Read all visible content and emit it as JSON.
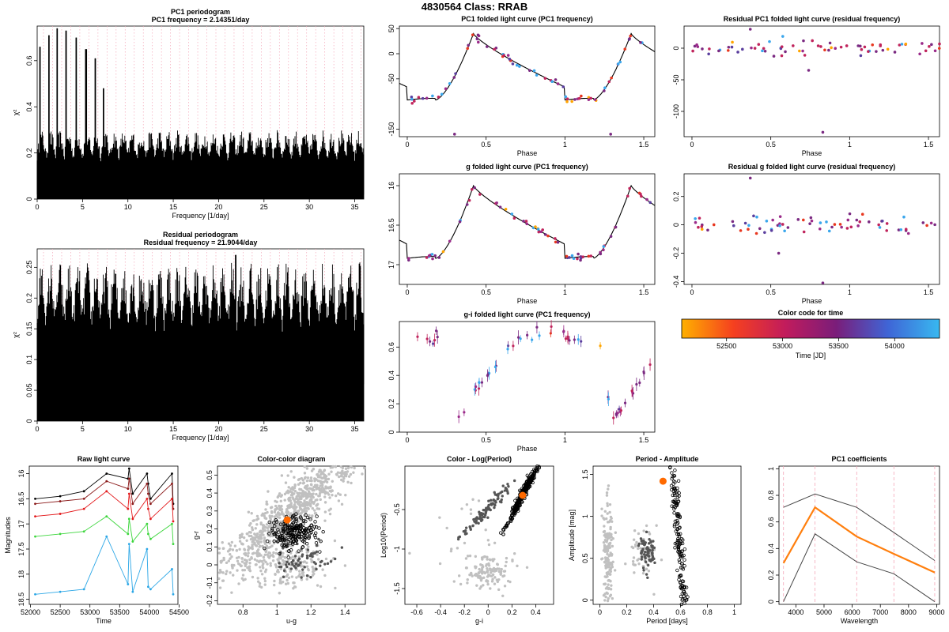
{
  "page": {
    "title": "4830564     Class: RRAB"
  },
  "colors": {
    "pink_dash": "#f4a6b8",
    "gray": "#c0c0c0",
    "dark_gray": "#555555",
    "orange": "#ff6a00",
    "orange_line": "#ff7f0e"
  },
  "chart_data": [
    {
      "id": "pc1_periodogram",
      "type": "line",
      "title": "PC1 periodogram",
      "subtitle": "PC1 frequency = 2.14351/day",
      "xlabel": "Frequency [1/day]",
      "ylabel": "χ²",
      "xlim": [
        0,
        36
      ],
      "ylim": [
        0,
        0.75
      ],
      "xticks": [
        0,
        5,
        10,
        15,
        20,
        25,
        30,
        35
      ],
      "yticks": [
        0.0,
        0.2,
        0.4,
        0.6
      ],
      "peaks": [
        {
          "x": 0.3,
          "y": 0.66
        },
        {
          "x": 1.3,
          "y": 0.71
        },
        {
          "x": 2.2,
          "y": 0.74
        },
        {
          "x": 3.2,
          "y": 0.73
        },
        {
          "x": 4.3,
          "y": 0.7
        },
        {
          "x": 5.4,
          "y": 0.65
        },
        {
          "x": 6.4,
          "y": 0.61
        },
        {
          "x": 7.3,
          "y": 0.48
        }
      ],
      "noise_level": 0.3
    },
    {
      "id": "residual_periodogram",
      "type": "line",
      "title": "Residual periodogram",
      "subtitle": "Residual frequency = 21.9044/day",
      "xlabel": "Frequency [1/day]",
      "ylabel": "χ²",
      "xlim": [
        0,
        36
      ],
      "ylim": [
        0,
        0.28
      ],
      "xticks": [
        0,
        5,
        10,
        15,
        20,
        25,
        30,
        35
      ],
      "yticks": [
        0.0,
        0.05,
        0.1,
        0.15,
        0.2,
        0.25
      ],
      "peak": {
        "x": 21.9,
        "y": 0.27
      },
      "noise_level": 0.26
    },
    {
      "id": "pc1_folded",
      "type": "scatter",
      "title": "PC1 folded light curve (PC1 frequency)",
      "xlabel": "Phase",
      "ylabel": "",
      "xlim": [
        -0.05,
        1.57
      ],
      "ylim": [
        -165,
        55
      ],
      "xticks": [
        0.0,
        0.5,
        1.0,
        1.5
      ],
      "yticks": [
        50,
        0,
        -50,
        -150
      ]
    },
    {
      "id": "residual_pc1_folded",
      "type": "scatter",
      "title": "Residual PC1 folded light curve (residual frequency)",
      "xlabel": "Phase",
      "ylabel": "",
      "xlim": [
        -0.05,
        1.57
      ],
      "ylim": [
        -140,
        35
      ],
      "xticks": [
        0.0,
        0.5,
        1.0,
        1.5
      ],
      "yticks": [
        0,
        -50,
        -100
      ]
    },
    {
      "id": "g_folded",
      "type": "scatter",
      "title": "g folded light curve (PC1 frequency)",
      "xlabel": "Phase",
      "ylabel": "",
      "xlim": [
        -0.05,
        1.57
      ],
      "ylim": [
        17.25,
        15.85
      ],
      "xticks": [
        0.0,
        0.5,
        1.0,
        1.5
      ],
      "yticks": [
        16.0,
        16.5,
        17.0
      ]
    },
    {
      "id": "residual_g_folded",
      "type": "scatter",
      "title": "Residual g folded light curve (residual frequency)",
      "xlabel": "Phase",
      "ylabel": "",
      "xlim": [
        -0.05,
        1.57
      ],
      "ylim": [
        -0.42,
        0.36
      ],
      "xticks": [
        0.0,
        0.5,
        1.0,
        1.5
      ],
      "yticks": [
        0.2,
        0.0,
        -0.2,
        -0.4
      ]
    },
    {
      "id": "gi_folded",
      "type": "scatter",
      "title": "g-i folded light curve (PC1 frequency)",
      "xlabel": "Phase",
      "ylabel": "",
      "xlim": [
        -0.05,
        1.57
      ],
      "ylim": [
        0.0,
        0.78
      ],
      "xticks": [
        0.0,
        0.5,
        1.0,
        1.5
      ],
      "yticks": [
        0.0,
        0.2,
        0.4,
        0.6
      ]
    },
    {
      "id": "colorbar",
      "type": "heatmap",
      "title": "Color code for time",
      "xlabel": "Time [JD]",
      "xlim": [
        52100,
        54400
      ],
      "xticks": [
        52500,
        53000,
        53500,
        54000
      ],
      "stops": [
        "#ffb000",
        "#f5401f",
        "#c21c5c",
        "#7a1d7a",
        "#3f65d6",
        "#38b8f0"
      ]
    },
    {
      "id": "raw_light_curve",
      "type": "line",
      "title": "Raw light curve",
      "xlabel": "Time",
      "ylabel": "Magnitudes",
      "xlim": [
        51980,
        54480
      ],
      "ylim": [
        18.6,
        15.85
      ],
      "xticks": [
        52000,
        52500,
        53000,
        53500,
        54000,
        54500
      ],
      "yticks": [
        16.0,
        16.5,
        17.0,
        17.5,
        18.0,
        18.5
      ],
      "times": [
        52080,
        52500,
        52900,
        53280,
        53640,
        53660,
        53720,
        53960,
        53980,
        54020,
        54380,
        54400
      ],
      "series": [
        {
          "name": "g",
          "color": "#000000",
          "values": [
            16.5,
            16.45,
            16.35,
            16.0,
            16.1,
            15.9,
            16.4,
            16.0,
            16.2,
            16.5,
            16.0,
            16.6
          ]
        },
        {
          "name": "r",
          "color": "#8b1a1a",
          "values": [
            16.6,
            16.55,
            16.5,
            16.15,
            16.3,
            16.1,
            16.6,
            16.2,
            16.4,
            16.6,
            16.2,
            16.7
          ]
        },
        {
          "name": "i",
          "color": "#e31a1c",
          "values": [
            16.85,
            16.8,
            16.7,
            16.35,
            16.7,
            16.4,
            16.9,
            16.5,
            16.7,
            16.9,
            16.5,
            16.95
          ]
        },
        {
          "name": "z",
          "color": "#3dd63d",
          "values": [
            17.25,
            17.2,
            17.15,
            16.85,
            17.2,
            16.9,
            17.35,
            17.0,
            17.2,
            17.3,
            17.0,
            17.4
          ]
        },
        {
          "name": "u",
          "color": "#2aa6e6",
          "values": [
            18.4,
            18.35,
            18.3,
            17.25,
            18.2,
            17.4,
            18.35,
            17.5,
            18.25,
            18.3,
            17.9,
            18.4
          ]
        }
      ]
    },
    {
      "id": "color_color",
      "type": "scatter",
      "title": "Color-color diagram",
      "xlabel": "u-g",
      "ylabel": "g-r",
      "xlim": [
        0.65,
        1.52
      ],
      "ylim": [
        -0.22,
        0.55
      ],
      "xticks": [
        0.8,
        1.0,
        1.2,
        1.4
      ],
      "yticks": [
        -0.2,
        -0.1,
        0.0,
        0.1,
        0.2,
        0.3,
        0.4,
        0.5
      ],
      "highlight": {
        "x": 1.06,
        "y": 0.25
      }
    },
    {
      "id": "color_logperiod",
      "type": "scatter",
      "title": "Color - Log(Period)",
      "xlabel": "g-i",
      "ylabel": "Log10(Period)",
      "xlim": [
        -0.7,
        0.55
      ],
      "ylim": [
        -1.7,
        0.05
      ],
      "xticks": [
        -0.6,
        -0.4,
        -0.2,
        0.0,
        0.2,
        0.4
      ],
      "yticks": [
        -1.5,
        -1.0,
        -0.5
      ],
      "highlight": {
        "x": 0.29,
        "y": -0.32
      }
    },
    {
      "id": "period_amplitude",
      "type": "scatter",
      "title": "Period - Amplitude",
      "xlabel": "Period [days]",
      "ylabel": "Amplitude [mag]",
      "xlim": [
        -0.05,
        1.05
      ],
      "ylim": [
        -0.05,
        1.6
      ],
      "xticks": [
        0.0,
        0.2,
        0.4,
        0.6,
        0.8,
        1.0
      ],
      "yticks": [
        0.0,
        0.5,
        1.0,
        1.5
      ],
      "highlight": {
        "x": 0.47,
        "y": 1.42
      }
    },
    {
      "id": "pc1_coefficients",
      "type": "line",
      "title": "PC1 coefficients",
      "xlabel": "Wavelength",
      "ylabel": "",
      "xlim": [
        3400,
        9100
      ],
      "ylim": [
        -0.02,
        1.02
      ],
      "xticks": [
        4000,
        5000,
        6000,
        7000,
        8000,
        9000
      ],
      "yticks": [
        0.0,
        0.2,
        0.4,
        0.6,
        0.8,
        1.0
      ],
      "x": [
        3560,
        4680,
        6160,
        7480,
        8930
      ],
      "series": [
        {
          "name": "",
          "color": "#ff7f0e",
          "values": [
            0.29,
            0.71,
            0.49,
            0.36,
            0.22
          ]
        },
        {
          "name": "",
          "color": "#444444",
          "values": [
            0.71,
            0.81,
            0.71,
            0.52,
            0.31
          ]
        },
        {
          "name": "",
          "color": "#444444",
          "values": [
            0.0,
            0.51,
            0.3,
            0.21,
            0.0
          ]
        }
      ]
    }
  ]
}
